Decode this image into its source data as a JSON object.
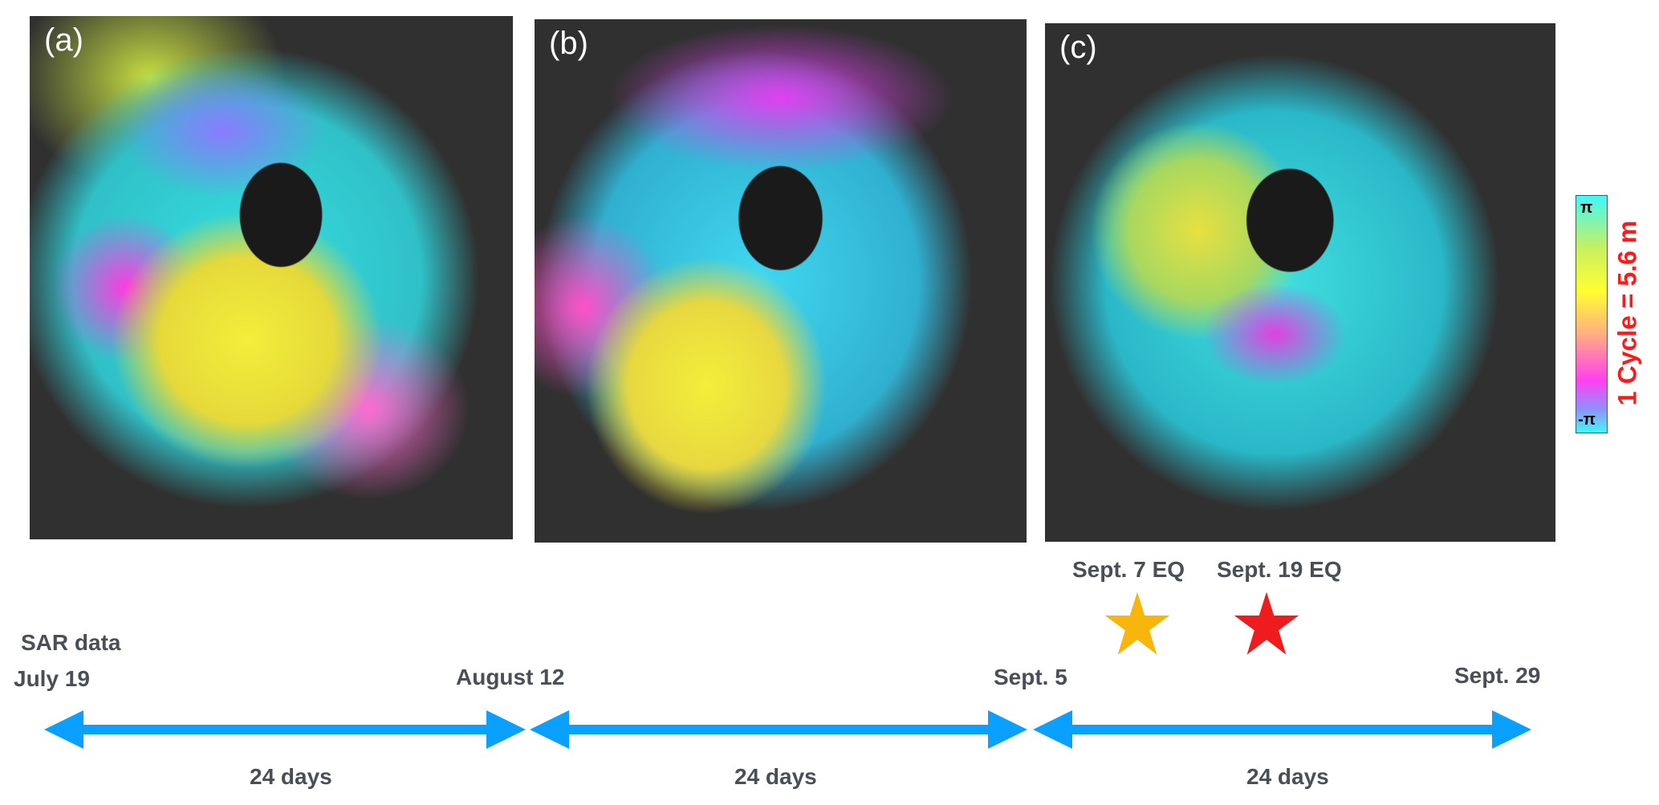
{
  "panels": [
    {
      "label": "(a)"
    },
    {
      "label": "(b)"
    },
    {
      "label": "(c)"
    }
  ],
  "colorbar": {
    "top_label": "π",
    "bottom_label": "-π",
    "title": "1 Cycle = 5.6 m",
    "title_color": "#ff1a1a"
  },
  "timeline": {
    "heading": "SAR data",
    "dates": [
      "July 19",
      "August 12",
      "Sept. 5",
      "Sept. 29"
    ],
    "intervals": [
      "24 days",
      "24 days",
      "24 days"
    ],
    "arrow_color": "#0aa0ff",
    "events": [
      {
        "label": "Sept. 7 EQ",
        "color": "#f8b60c"
      },
      {
        "label": "Sept. 19 EQ",
        "color": "#ee1c1c"
      }
    ]
  }
}
